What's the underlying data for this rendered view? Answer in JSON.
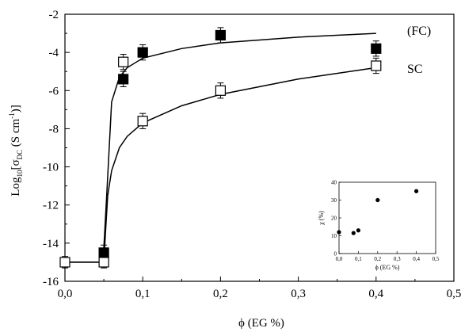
{
  "chart_data": [
    {
      "type": "scatter",
      "xlabel": "ϕ (EG %)",
      "ylabel_main": "Log",
      "ylabel_sub": "10",
      "ylabel_sigma": "[σ",
      "ylabel_sigma_sub": "DC",
      "ylabel_units": " (S cm",
      "ylabel_units_sup": "-1",
      "ylabel_close": ")]",
      "xlim": [
        0.0,
        0.5
      ],
      "ylim": [
        -16,
        -2
      ],
      "x_ticks": [
        0.0,
        0.1,
        0.2,
        0.3,
        0.4,
        0.5
      ],
      "x_tick_labels": [
        "0,0",
        "0,1",
        "0,2",
        "0,3",
        "0,4",
        "0,5"
      ],
      "y_ticks": [
        -16,
        -14,
        -12,
        -10,
        -8,
        -6,
        -4,
        -2
      ],
      "y_tick_labels": [
        "-16",
        "-14",
        "-12",
        "-10",
        "-8",
        "-6",
        "-4",
        "-2"
      ],
      "grid": false,
      "series": [
        {
          "name": "(FC)",
          "marker": "filled-square",
          "points": [
            {
              "x": 0.05,
              "y": -14.5,
              "err": 0.4
            },
            {
              "x": 0.075,
              "y": -5.4,
              "err": 0.4
            },
            {
              "x": 0.1,
              "y": -4.0,
              "err": 0.4
            },
            {
              "x": 0.2,
              "y": -3.1,
              "err": 0.4
            },
            {
              "x": 0.4,
              "y": -3.8,
              "err": 0.4
            }
          ],
          "fit": [
            [
              0.0,
              -15.0
            ],
            [
              0.049,
              -15.0
            ],
            [
              0.055,
              -10.5
            ],
            [
              0.06,
              -6.6
            ],
            [
              0.07,
              -5.3
            ],
            [
              0.08,
              -4.8
            ],
            [
              0.1,
              -4.3
            ],
            [
              0.15,
              -3.8
            ],
            [
              0.2,
              -3.5
            ],
            [
              0.3,
              -3.2
            ],
            [
              0.4,
              -3.0
            ]
          ]
        },
        {
          "name": "SC",
          "marker": "open-square",
          "points": [
            {
              "x": 0.0,
              "y": -15.0,
              "err": 0.3
            },
            {
              "x": 0.05,
              "y": -15.0,
              "err": 0.3
            },
            {
              "x": 0.075,
              "y": -4.5,
              "err": 0.4
            },
            {
              "x": 0.1,
              "y": -7.6,
              "err": 0.4
            },
            {
              "x": 0.2,
              "y": -6.0,
              "err": 0.4
            },
            {
              "x": 0.4,
              "y": -4.7,
              "err": 0.4
            }
          ],
          "fit": [
            [
              0.0,
              -15.0
            ],
            [
              0.05,
              -15.0
            ],
            [
              0.052,
              -13.5
            ],
            [
              0.055,
              -11.5
            ],
            [
              0.06,
              -10.2
            ],
            [
              0.07,
              -9.0
            ],
            [
              0.08,
              -8.4
            ],
            [
              0.1,
              -7.7
            ],
            [
              0.15,
              -6.8
            ],
            [
              0.2,
              -6.2
            ],
            [
              0.3,
              -5.4
            ],
            [
              0.4,
              -4.8
            ]
          ]
        }
      ]
    },
    {
      "type": "scatter",
      "role": "inset",
      "xlabel": "ϕ (EG %)",
      "ylabel": "χ (%)",
      "xlim": [
        0.0,
        0.5
      ],
      "ylim": [
        0,
        40
      ],
      "x_ticks": [
        0.0,
        0.1,
        0.2,
        0.3,
        0.4,
        0.5
      ],
      "x_tick_labels": [
        "0,0",
        "0,1",
        "0,2",
        "0,3",
        "0,4",
        "0,5"
      ],
      "y_ticks": [
        0,
        10,
        20,
        30,
        40
      ],
      "y_tick_labels": [
        "0",
        "10",
        "20",
        "30",
        "40"
      ],
      "points": [
        {
          "x": 0.0,
          "y": 12
        },
        {
          "x": 0.075,
          "y": 11.5
        },
        {
          "x": 0.1,
          "y": 13
        },
        {
          "x": 0.2,
          "y": 30
        },
        {
          "x": 0.4,
          "y": 35
        }
      ]
    }
  ]
}
